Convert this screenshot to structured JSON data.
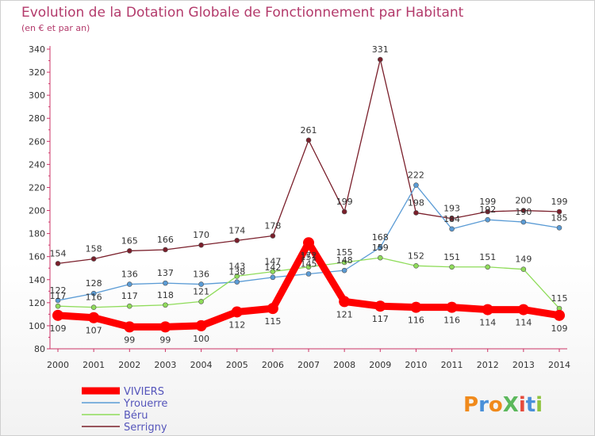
{
  "title": "Evolution de la Dotation Globale de Fonctionnement par Habitant",
  "subtitle": "(en € et par an)",
  "logo": "ProXiti",
  "chart_data": {
    "type": "line",
    "categories": [
      "2000",
      "2001",
      "2002",
      "2003",
      "2004",
      "2005",
      "2006",
      "2007",
      "2008",
      "2009",
      "2010",
      "2011",
      "2012",
      "2013",
      "2014"
    ],
    "ylim": [
      80,
      340
    ],
    "yticks": [
      80,
      100,
      120,
      140,
      160,
      180,
      200,
      220,
      240,
      260,
      280,
      300,
      320,
      340
    ],
    "grid": false,
    "legend_position": "bottom-left",
    "series": [
      {
        "name": "Serrigny",
        "color": "#7a1f2b",
        "values": [
          154,
          158,
          165,
          166,
          170,
          174,
          178,
          261,
          199,
          331,
          198,
          193,
          199,
          200,
          199
        ]
      },
      {
        "name": "Yrouerre",
        "color": "#5a9bd5",
        "values": [
          122,
          128,
          136,
          137,
          136,
          138,
          142,
          145,
          148,
          168,
          222,
          184,
          192,
          190,
          185
        ]
      },
      {
        "name": "Béru",
        "color": "#8fdc5a",
        "values": [
          117,
          116,
          117,
          118,
          121,
          143,
          147,
          151,
          155,
          159,
          152,
          151,
          151,
          149,
          115
        ]
      },
      {
        "name": "VIVIERS",
        "color": "#ff0000",
        "values": [
          109,
          107,
          99,
          99,
          100,
          112,
          115,
          172,
          121,
          117,
          116,
          116,
          114,
          114,
          109
        ]
      }
    ],
    "legend_order": [
      "VIVIERS",
      "Yrouerre",
      "Béru",
      "Serrigny"
    ]
  }
}
